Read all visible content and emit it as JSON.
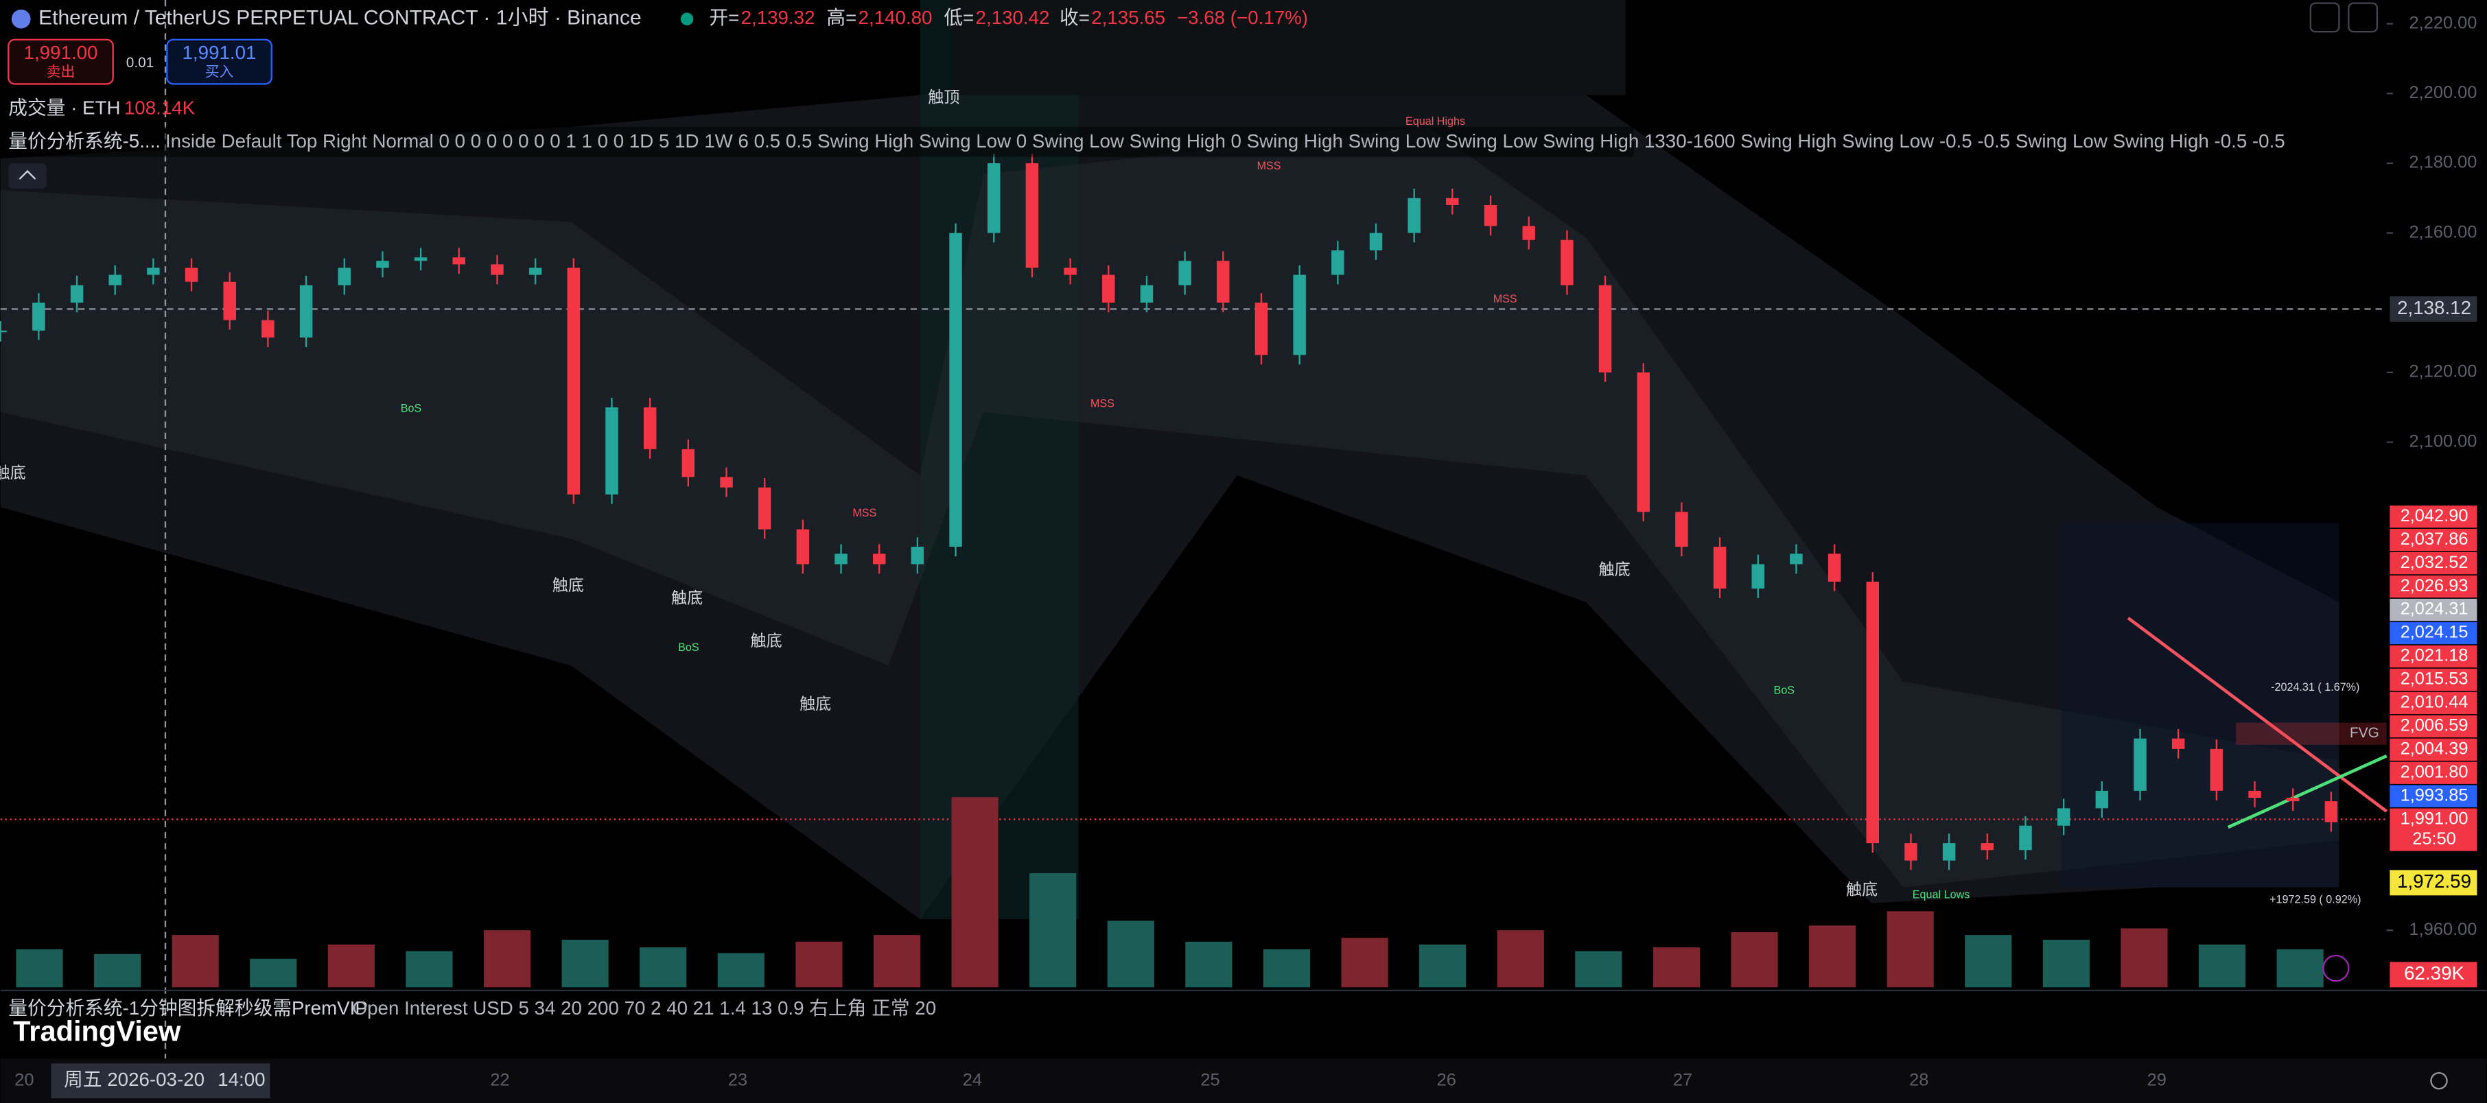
{
  "header": {
    "symbol": "Ethereum / TetherUS PERPETUAL CONTRACT · 1小时 · Binance",
    "open_label": "开=",
    "open": "2,139.32",
    "high_label": "高=",
    "high": "2,140.80",
    "low_label": "低=",
    "low": "2,130.42",
    "close_label": "收=",
    "close": "2,135.65",
    "change": "−3.68 (−0.17%)"
  },
  "trade": {
    "sell_price": "1,991.00",
    "sell_label": "卖出",
    "spread": "0.01",
    "buy_price": "1,991.01",
    "buy_label": "买入"
  },
  "volume_legend": {
    "label": "成交量 · ETH",
    "value": "108.14K"
  },
  "indicator_legend": {
    "name": "量价分析系统-5....",
    "params": "Inside Default Top Right Normal 0 0 0 0 0 0 0 0 1 1 0 0 1D 5 1D 1W 6 0.5 0.5 Swing High Swing Low 0 Swing Low Swing High 0 Swing High Swing Low Swing Low Swing High 1330-1600 Swing High Swing Low -0.5 -0.5 Swing Low Swing High -0.5 -0.5"
  },
  "bottom_indicator": {
    "name": "量价分析系统-1分钟图拆解秒级需PremVIP",
    "params": "Open Interest USD 5 34 20 200 70 2 40 21 1.4 13 0.9 右上角 正常 20"
  },
  "annotations": [
    "触底",
    "触底",
    "触底",
    "触底",
    "触底",
    "触底",
    "触底",
    "触顶",
    "MSS",
    "MSS",
    "MSS",
    "MSS",
    "BoS",
    "BoS",
    "BoS",
    "Equal Highs",
    "Equal Lows",
    "FVG",
    "-2024.31 ( 1.67%)",
    "+1972.59 ( 0.92%)"
  ],
  "price_axis": {
    "ylim": [
      1943.64,
      2226.82
    ],
    "ticks": [
      {
        "value": 2220,
        "label": "2,220.00"
      },
      {
        "value": 2200,
        "label": "2,200.00"
      },
      {
        "value": 2180,
        "label": "2,180.00"
      },
      {
        "value": 2160,
        "label": "2,160.00"
      },
      {
        "value": 2120,
        "label": "2,120.00"
      },
      {
        "value": 2100,
        "label": "2,100.00"
      },
      {
        "value": 1960,
        "label": "1,960.00"
      }
    ]
  },
  "price_tags": [
    {
      "text": "2,042.90",
      "color": "#f23645"
    },
    {
      "text": "2,037.86",
      "color": "#f23645"
    },
    {
      "text": "2,032.52",
      "color": "#f23645"
    },
    {
      "text": "2,026.93",
      "color": "#f23645"
    },
    {
      "text": "2,024.31",
      "color": "#b2b5be"
    },
    {
      "text": "2,024.15",
      "color": "#2962ff"
    },
    {
      "text": "2,021.18",
      "color": "#f23645"
    },
    {
      "text": "2,015.53",
      "color": "#f23645"
    },
    {
      "text": "2,010.44",
      "color": "#f23645"
    },
    {
      "text": "2,006.59",
      "color": "#f23645"
    },
    {
      "text": "2,004.39",
      "color": "#f23645"
    },
    {
      "text": "2,001.80",
      "color": "#f23645"
    },
    {
      "text": "1,993.85",
      "color": "#2962ff"
    },
    {
      "text": "1,991.00",
      "color": "#f23645"
    }
  ],
  "countdown": "25:50",
  "low_tag": "1,972.59",
  "volume_tag": "62.39K",
  "crosshair": {
    "price": "2,138.12",
    "date": "周五 2026-03-20",
    "time": "14:00"
  },
  "time_axis": [
    "20",
    "22",
    "23",
    "24",
    "25",
    "26",
    "27",
    "28",
    "29"
  ],
  "candles": {
    "closes": [
      2132,
      2140,
      2145,
      2148,
      2150,
      2146,
      2135,
      2130,
      2145,
      2150,
      2152,
      2153,
      2151,
      2148,
      2150,
      2085,
      2110,
      2098,
      2090,
      2087,
      2075,
      2065,
      2068,
      2065,
      2070,
      2160,
      2180,
      2150,
      2148,
      2140,
      2145,
      2152,
      2140,
      2125,
      2148,
      2155,
      2160,
      2170,
      2168,
      2162,
      2158,
      2145,
      2120,
      2080,
      2070,
      2058,
      2065,
      2068,
      2060,
      1985,
      1980,
      1985,
      1983,
      1990,
      1995,
      2000,
      2015,
      2012,
      2000,
      1998,
      1997,
      1991
    ]
  },
  "volume": [
    40,
    35,
    55,
    30,
    45,
    38,
    60,
    50,
    42,
    36,
    48,
    55,
    200,
    120,
    70,
    48,
    40,
    52,
    45,
    60,
    38,
    42,
    58,
    65,
    80,
    55,
    50,
    62,
    45,
    40
  ],
  "logo": "TradingView"
}
